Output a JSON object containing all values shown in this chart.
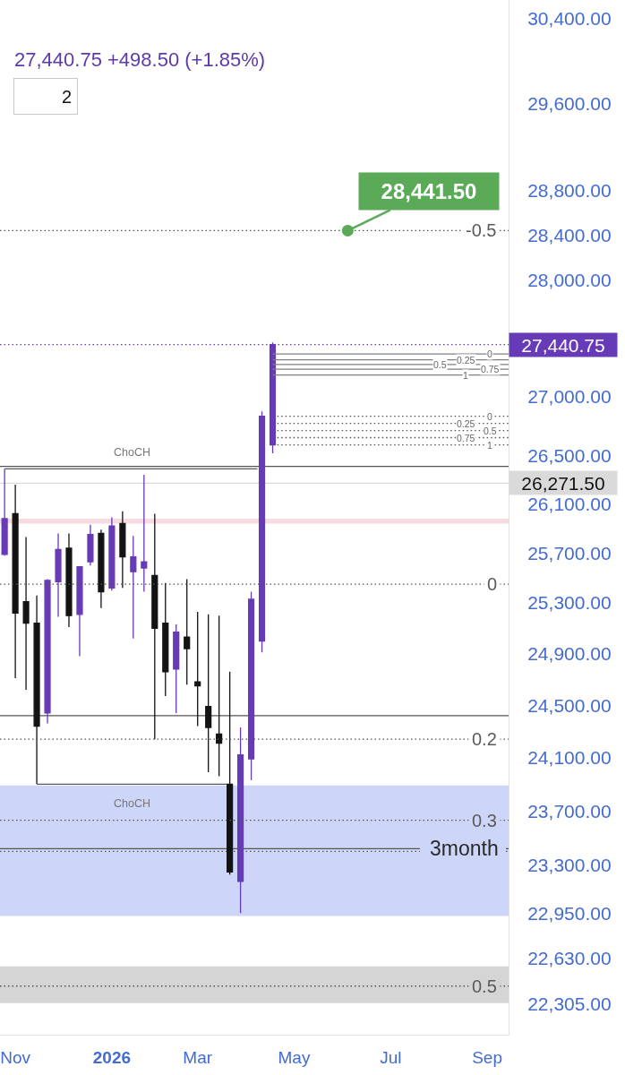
{
  "chart_data": {
    "type": "candlestick",
    "subtitle": "27,440.75 +498.50 (+1.85%)",
    "x": [
      "2025-10-27",
      "2025-11-03",
      "2025-11-10",
      "2025-11-17",
      "2025-11-24",
      "2025-12-01",
      "2025-12-08",
      "2025-12-15",
      "2025-12-22",
      "2025-12-29",
      "2026-01-05",
      "2026-01-12",
      "2026-01-19",
      "2026-01-26",
      "2026-02-02",
      "2026-02-09",
      "2026-02-16",
      "2026-02-23",
      "2026-03-02",
      "2026-03-09",
      "2026-03-16",
      "2026-03-23",
      "2026-03-30",
      "2026-04-06",
      "2026-04-13",
      "2026-04-20"
    ],
    "ohlc": [
      [
        25690,
        26390,
        25680,
        25980
      ],
      [
        26020,
        26260,
        24710,
        25220
      ],
      [
        25310,
        25830,
        24620,
        25140
      ],
      [
        25140,
        25360,
        23900,
        24340
      ],
      [
        24440,
        25490,
        24360,
        25480
      ],
      [
        25470,
        25860,
        25190,
        25730
      ],
      [
        25740,
        25860,
        25110,
        25200
      ],
      [
        25210,
        25590,
        24880,
        25590
      ],
      [
        25630,
        25930,
        25600,
        25850
      ],
      [
        25860,
        25890,
        25260,
        25390
      ],
      [
        25420,
        25990,
        25400,
        25920
      ],
      [
        25940,
        26040,
        25420,
        25670
      ],
      [
        25550,
        25840,
        25020,
        25670
      ],
      [
        25580,
        26340,
        25390,
        25630
      ],
      [
        25520,
        26020,
        24240,
        25100
      ],
      [
        25140,
        25460,
        24570,
        24760
      ],
      [
        24780,
        25130,
        24440,
        25070
      ],
      [
        25030,
        25490,
        24660,
        24940
      ],
      [
        24680,
        25230,
        24340,
        24650
      ],
      [
        24490,
        25210,
        23990,
        24330
      ],
      [
        24280,
        25200,
        23960,
        24210
      ],
      [
        23900,
        24760,
        23230,
        23250
      ],
      [
        23180,
        24330,
        22950,
        24120
      ],
      [
        24090,
        25390,
        23930,
        25330
      ],
      [
        25000,
        26870,
        24910,
        26830
      ],
      [
        26590,
        27460,
        26520,
        27440.75
      ]
    ],
    "colors": [
      "#673ab7",
      "#131313",
      "#131313",
      "#131313",
      "#673ab7",
      "#673ab7",
      "#131313",
      "#673ab7",
      "#673ab7",
      "#131313",
      "#673ab7",
      "#131313",
      "#673ab7",
      "#673ab7",
      "#131313",
      "#131313",
      "#673ab7",
      "#131313",
      "#131313",
      "#131313",
      "#131313",
      "#131313",
      "#673ab7",
      "#673ab7",
      "#673ab7",
      "#673ab7"
    ],
    "log": true,
    "xlim": [
      "2025-10-24",
      "2026-09-21"
    ],
    "xticks": [
      {
        "value": "2025-11-03",
        "label": "Nov"
      },
      {
        "value": "2026-01-05",
        "label": "2026"
      },
      {
        "value": "2026-03-02",
        "label": "Mar"
      },
      {
        "value": "2026-05-04",
        "label": "May"
      },
      {
        "value": "2026-07-06",
        "label": "Jul"
      },
      {
        "value": "2026-09-07",
        "label": "Sep"
      }
    ],
    "ylim": [
      22090,
      30580
    ],
    "yticks": [
      {
        "value": 30400,
        "label": "30,400.00"
      },
      {
        "value": 29600,
        "label": "29,600.00"
      },
      {
        "value": 28800,
        "label": "28,800.00"
      },
      {
        "value": 28400,
        "label": "28,400.00"
      },
      {
        "value": 28000,
        "label": "28,000.00"
      },
      {
        "value": 27000,
        "label": "27,000.00"
      },
      {
        "value": 26500,
        "label": "26,500.00"
      },
      {
        "value": 26100,
        "label": "26,100.00"
      },
      {
        "value": 25700,
        "label": "25,700.00"
      },
      {
        "value": 25300,
        "label": "25,300.00"
      },
      {
        "value": 24900,
        "label": "24,900.00"
      },
      {
        "value": 24500,
        "label": "24,500.00"
      },
      {
        "value": 24100,
        "label": "24,100.00"
      },
      {
        "value": 23700,
        "label": "23,700.00"
      },
      {
        "value": 23300,
        "label": "23,300.00"
      },
      {
        "value": 22950,
        "label": "22,950.00"
      },
      {
        "value": 22630,
        "label": "22,630.00"
      },
      {
        "value": 22305,
        "label": "22,305.00"
      }
    ],
    "series": [
      {
        "type": "line",
        "x": [
          "2025-10-27",
          "2026-04-10"
        ],
        "values": [
          26390,
          26390
        ],
        "color": "#5a5a5a",
        "line_style": "solid"
      },
      {
        "type": "line",
        "x": [
          "2025-11-17",
          "2026-03-21"
        ],
        "values": [
          23900,
          23900
        ],
        "color": "#5a5a5a",
        "line_style": "solid"
      },
      {
        "type": "line",
        "x": [
          "2025-10-24",
          "2026-09-21"
        ],
        "values": [
          28441.5,
          28441.5
        ],
        "color": "#555555",
        "line_style": "dotted"
      },
      {
        "type": "line",
        "x": [
          "2025-10-24",
          "2026-09-21"
        ],
        "values": [
          25450,
          25450
        ],
        "color": "#555555",
        "line_style": "dotted"
      },
      {
        "type": "line",
        "x": [
          "2025-10-24",
          "2026-09-21"
        ],
        "values": [
          24240,
          24240
        ],
        "color": "#555555",
        "line_style": "dotted"
      },
      {
        "type": "line",
        "x": [
          "2025-10-24",
          "2026-09-21"
        ],
        "values": [
          23630,
          23630
        ],
        "color": "#555555",
        "line_style": "dotted"
      },
      {
        "type": "line",
        "x": [
          "2025-10-24",
          "2026-09-21"
        ],
        "values": [
          22430,
          22430
        ],
        "color": "#555555",
        "line_style": "dotted"
      },
      {
        "type": "line",
        "x": [
          "2026-04-20",
          "2026-09-21"
        ],
        "values": [
          27360,
          27360
        ],
        "color": "#808080",
        "line_style": "solid"
      },
      {
        "type": "line",
        "x": [
          "2026-04-20",
          "2026-09-21"
        ],
        "values": [
          27310,
          27310
        ],
        "color": "#808080",
        "line_style": "solid"
      },
      {
        "type": "line",
        "x": [
          "2026-04-20",
          "2026-09-21"
        ],
        "values": [
          27270,
          27270
        ],
        "color": "#808080",
        "line_style": "solid"
      },
      {
        "type": "line",
        "x": [
          "2026-04-20",
          "2026-09-21"
        ],
        "values": [
          27230,
          27230
        ],
        "color": "#808080",
        "line_style": "solid"
      },
      {
        "type": "line",
        "x": [
          "2026-04-20",
          "2026-09-21"
        ],
        "values": [
          27180,
          27180
        ],
        "color": "#808080",
        "line_style": "solid"
      },
      {
        "type": "line",
        "x": [
          "2026-04-23",
          "2026-09-21"
        ],
        "values": [
          26830,
          26830
        ],
        "color": "#555555",
        "line_style": "dotted"
      },
      {
        "type": "line",
        "x": [
          "2026-04-23",
          "2026-09-21"
        ],
        "values": [
          26770,
          26770
        ],
        "color": "#555555",
        "line_style": "dotted"
      },
      {
        "type": "line",
        "x": [
          "2026-04-23",
          "2026-09-21"
        ],
        "values": [
          26710,
          26710
        ],
        "color": "#555555",
        "line_style": "dotted"
      },
      {
        "type": "line",
        "x": [
          "2026-04-23",
          "2026-09-21"
        ],
        "values": [
          26650,
          26650
        ],
        "color": "#555555",
        "line_style": "dotted"
      },
      {
        "type": "line",
        "x": [
          "2026-04-23",
          "2026-09-21"
        ],
        "values": [
          26590,
          26590
        ],
        "color": "#555555",
        "line_style": "dotted"
      }
    ],
    "ref_lines": [
      {
        "axis": "y",
        "value": 27440.75,
        "label": "27,440.75",
        "color": "#673ab7",
        "line_style": "dotted"
      },
      {
        "axis": "y",
        "value": 26410,
        "line_style": "solid"
      },
      {
        "axis": "y",
        "value": 26271.5,
        "label": "26,271.50",
        "color": "#dadada",
        "line_style": "solid"
      },
      {
        "axis": "y",
        "value": 24420,
        "line_style": "solid"
      },
      {
        "axis": "y",
        "value": 23420,
        "label": "3month",
        "line_style": "solid"
      },
      {
        "axis": "y",
        "value": 23400,
        "line_style": "dotted"
      }
    ],
    "bands": [
      {
        "axis": "y",
        "from": 25940,
        "to": 25980,
        "color": "#f7dbe1"
      },
      {
        "axis": "y",
        "from": 22930,
        "to": 23890,
        "color": "#cdd6f8"
      },
      {
        "axis": "y",
        "from": 22310,
        "to": 22570,
        "color": "#d5d5d5"
      }
    ],
    "annotations": [
      {
        "text": "28,441.50",
        "x": "2026-06-08",
        "y": 28441.5
      },
      {
        "text": "ChoCH",
        "x": "2026-01-18",
        "y": 26390
      },
      {
        "text": "ChoCH",
        "x": "2026-01-18",
        "y": 23900
      },
      {
        "text": "-0.5",
        "x": "2026-09-03",
        "y": 28441.5
      },
      {
        "text": "0",
        "x": "2026-09-10",
        "y": 25450
      },
      {
        "text": "0.2",
        "x": "2026-09-05",
        "y": 24240
      },
      {
        "text": "0.3",
        "x": "2026-09-05",
        "y": 23630
      },
      {
        "text": "0.5",
        "x": "2026-09-05",
        "y": 22430
      },
      {
        "text": "0",
        "x": "2026-09-09",
        "y": 27360
      },
      {
        "text": "0.25",
        "x": "2026-08-24",
        "y": 27310
      },
      {
        "text": "0.5",
        "x": "2026-08-07",
        "y": 27270
      },
      {
        "text": "0.75",
        "x": "2026-09-09",
        "y": 27230
      },
      {
        "text": "1",
        "x": "2026-08-24",
        "y": 27180
      },
      {
        "text": "0",
        "x": "2026-09-09",
        "y": 26830
      },
      {
        "text": "0.25",
        "x": "2026-08-24",
        "y": 26770
      },
      {
        "text": "0.5",
        "x": "2026-09-09",
        "y": 26710
      },
      {
        "text": "0.75",
        "x": "2026-08-24",
        "y": 26650
      },
      {
        "text": "1",
        "x": "2026-09-09",
        "y": 26590
      },
      "2"
    ]
  }
}
